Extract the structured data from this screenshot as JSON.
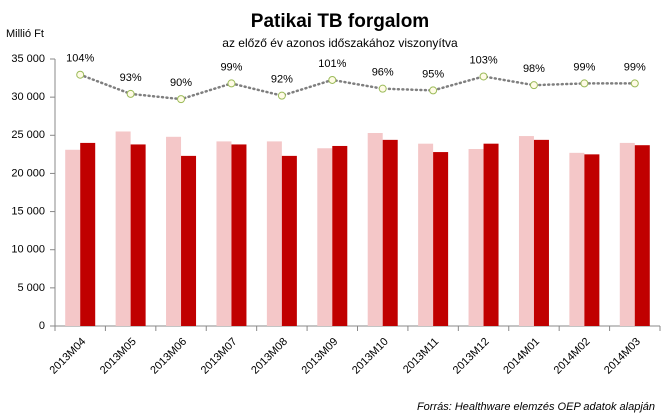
{
  "chart_data": {
    "type": "bar",
    "title": "Patikai TB forgalom",
    "subtitle": "az előző év azonos időszakához viszonyítva",
    "y_label": "Millió Ft",
    "source": "Forrás: Healthware elemzés OEP adatok alapján",
    "categories": [
      "2013M04",
      "2013M05",
      "2013M06",
      "2013M07",
      "2013M08",
      "2013M09",
      "2013M10",
      "2013M11",
      "2013M12",
      "2014M01",
      "2014M02",
      "2014M03"
    ],
    "series": [
      {
        "color": "#f4c7c8",
        "values": [
          23100,
          25500,
          24800,
          24200,
          24200,
          23300,
          25300,
          23900,
          23200,
          24900,
          22700,
          24000
        ]
      },
      {
        "color": "#c00000",
        "values": [
          24000,
          23800,
          22300,
          23800,
          22300,
          23600,
          24400,
          22800,
          23900,
          24400,
          22500,
          23700
        ]
      },
      {
        "type": "line",
        "axis": "y2",
        "color": "#7f7f7f",
        "marker_color": "#9bbb59",
        "values": [
          104,
          93,
          90,
          99,
          92,
          101,
          96,
          95,
          103,
          98,
          99,
          99
        ],
        "value_labels": [
          "104%",
          "93%",
          "90%",
          "99%",
          "92%",
          "101%",
          "96%",
          "95%",
          "103%",
          "98%",
          "99%",
          "99%"
        ]
      }
    ],
    "ylim": [
      0,
      35000
    ],
    "yticks": [
      0,
      {
        "value": 5000,
        "label": "5 000"
      },
      {
        "value": 10000,
        "label": "10 000"
      },
      {
        "value": 15000,
        "label": "15 000"
      },
      {
        "value": 20000,
        "label": "20 000"
      },
      {
        "value": 25000,
        "label": "25 000"
      },
      {
        "value": 30000,
        "label": "30 000"
      },
      {
        "value": 35000,
        "label": "35 000"
      }
    ],
    "y2lim": [
      -40,
      113
    ],
    "grid": false
  }
}
